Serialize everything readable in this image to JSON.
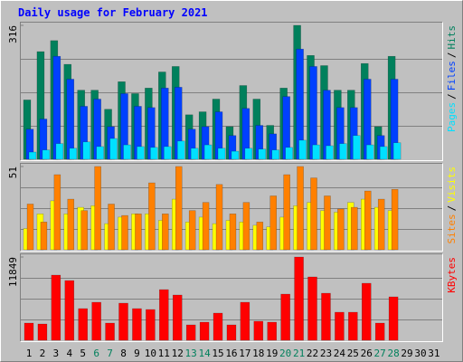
{
  "chart_data": [
    {
      "type": "bar",
      "title": "Daily usage for February 2021",
      "ylim": [
        0,
        316
      ],
      "yticks": [
        316
      ],
      "legend_separator": "/",
      "series": [
        {
          "name": "Hits",
          "color": "#00805c",
          "values": [
            140,
            254,
            280,
            224,
            163,
            163,
            118,
            183,
            155,
            168,
            206,
            219,
            105,
            112,
            142,
            77,
            174,
            142,
            80,
            168,
            316,
            245,
            221,
            163,
            163,
            226,
            77,
            243,
            null,
            null,
            null
          ]
        },
        {
          "name": "Files",
          "color": "#0040ff",
          "values": [
            71,
            95,
            243,
            189,
            125,
            142,
            77,
            155,
            125,
            122,
            168,
            170,
            71,
            77,
            112,
            56,
            120,
            80,
            60,
            148,
            260,
            219,
            163,
            122,
            122,
            189,
            56,
            189,
            null,
            null,
            null
          ]
        },
        {
          "name": "Pages",
          "color": "#00e0ff",
          "values": [
            17,
            22,
            37,
            26,
            41,
            30,
            49,
            34,
            30,
            28,
            30,
            43,
            26,
            34,
            26,
            19,
            26,
            24,
            22,
            28,
            45,
            34,
            32,
            37,
            56,
            34,
            30,
            39,
            null,
            null,
            null
          ]
        }
      ]
    },
    {
      "type": "bar",
      "ylim": [
        0,
        51
      ],
      "yticks": [
        51
      ],
      "legend_separator": "/",
      "series": [
        {
          "name": "Visits",
          "color": "#ffff00",
          "values": [
            13,
            22,
            30,
            22,
            26,
            27,
            16,
            20,
            22,
            22,
            18,
            31,
            17,
            20,
            16,
            18,
            17,
            15,
            14,
            20,
            27,
            29,
            24,
            23,
            29,
            31,
            26,
            24,
            null,
            null,
            null
          ]
        },
        {
          "name": "Sites",
          "color": "#ff8000",
          "values": [
            28,
            17,
            46,
            31,
            24,
            51,
            28,
            21,
            22,
            41,
            22,
            51,
            24,
            29,
            40,
            22,
            29,
            17,
            33,
            46,
            51,
            44,
            33,
            25,
            26,
            36,
            31,
            37,
            null,
            null,
            null
          ]
        }
      ]
    },
    {
      "type": "bar",
      "ylim": [
        0,
        11849
      ],
      "yticks": [
        11849
      ],
      "series": [
        {
          "name": "KBytes",
          "color": "#ff0000",
          "values": [
            2447,
            2318,
            9273,
            8500,
            4508,
            5409,
            2447,
            5281,
            4508,
            4379,
            7212,
            6440,
            2190,
            2576,
            3864,
            2190,
            5409,
            2705,
            2576,
            6568,
            11849,
            9016,
            6697,
            3993,
            3993,
            8114,
            2447,
            6182,
            null,
            null,
            null
          ]
        }
      ],
      "categories": [
        "1",
        "2",
        "3",
        "4",
        "5",
        "6",
        "7",
        "8",
        "9",
        "10",
        "11",
        "12",
        "13",
        "14",
        "15",
        "16",
        "17",
        "18",
        "19",
        "20",
        "21",
        "22",
        "23",
        "24",
        "25",
        "26",
        "27",
        "28",
        "29",
        "30",
        "31"
      ],
      "weekends": [
        "6",
        "7",
        "13",
        "14",
        "20",
        "21",
        "27",
        "28"
      ],
      "weekend_color": "#00805c"
    }
  ]
}
